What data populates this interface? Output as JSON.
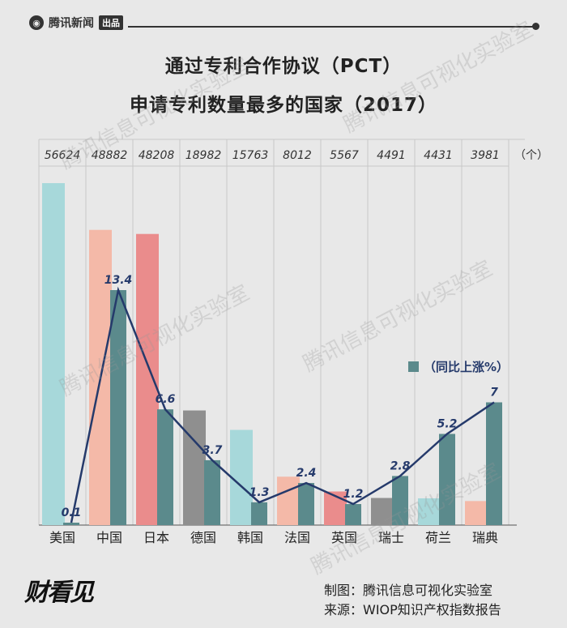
{
  "header": {
    "brand": "腾讯新闻",
    "badge": "出品"
  },
  "title_line1": "通过专利合作协议（PCT）",
  "title_line2": "申请专利数量最多的国家（2017）",
  "unit_label": "（个）",
  "legend_label": "（同比上涨%）",
  "watermark": "腾讯信息可视化实验室",
  "footer": {
    "credit_line1": "制图：腾讯信息可视化实验室",
    "credit_line2": "来源：WIOP知识产权指数报告",
    "brand": "财看见"
  },
  "colors": {
    "growth": "#5b8a8c",
    "line": "#253a6b",
    "bars": [
      "#a7d8da",
      "#f4b9a8",
      "#ea8c8c",
      "#8f8f8f",
      "#a7d8da",
      "#f4b9a8",
      "#ea8c8c",
      "#8f8f8f",
      "#a7d8da",
      "#f4b9a8"
    ]
  },
  "chart_data": {
    "type": "bar",
    "categories": [
      "美国",
      "中国",
      "日本",
      "德国",
      "韩国",
      "法国",
      "英国",
      "瑞士",
      "荷兰",
      "瑞典"
    ],
    "series": [
      {
        "values": [
          56624,
          48882,
          48208,
          18982,
          15763,
          8012,
          5567,
          4491,
          4431,
          3981
        ]
      },
      {
        "name": "同比上涨%",
        "values": [
          0.1,
          13.4,
          6.6,
          3.7,
          1.3,
          2.4,
          1.2,
          2.8,
          5.2,
          7
        ]
      }
    ],
    "value_labels": [
      "56624",
      "48882",
      "48208",
      "18982",
      "15763",
      "8012",
      "5567",
      "4491",
      "4431",
      "3981"
    ],
    "growth_labels": [
      "0.1",
      "13.4",
      "6.6",
      "3.7",
      "1.3",
      "2.4",
      "1.2",
      "2.8",
      "5.2",
      "7"
    ],
    "title": "通过专利合作协议（PCT）申请专利数量最多的国家（2017）",
    "unit": "个",
    "grid": true,
    "legend": "right"
  }
}
